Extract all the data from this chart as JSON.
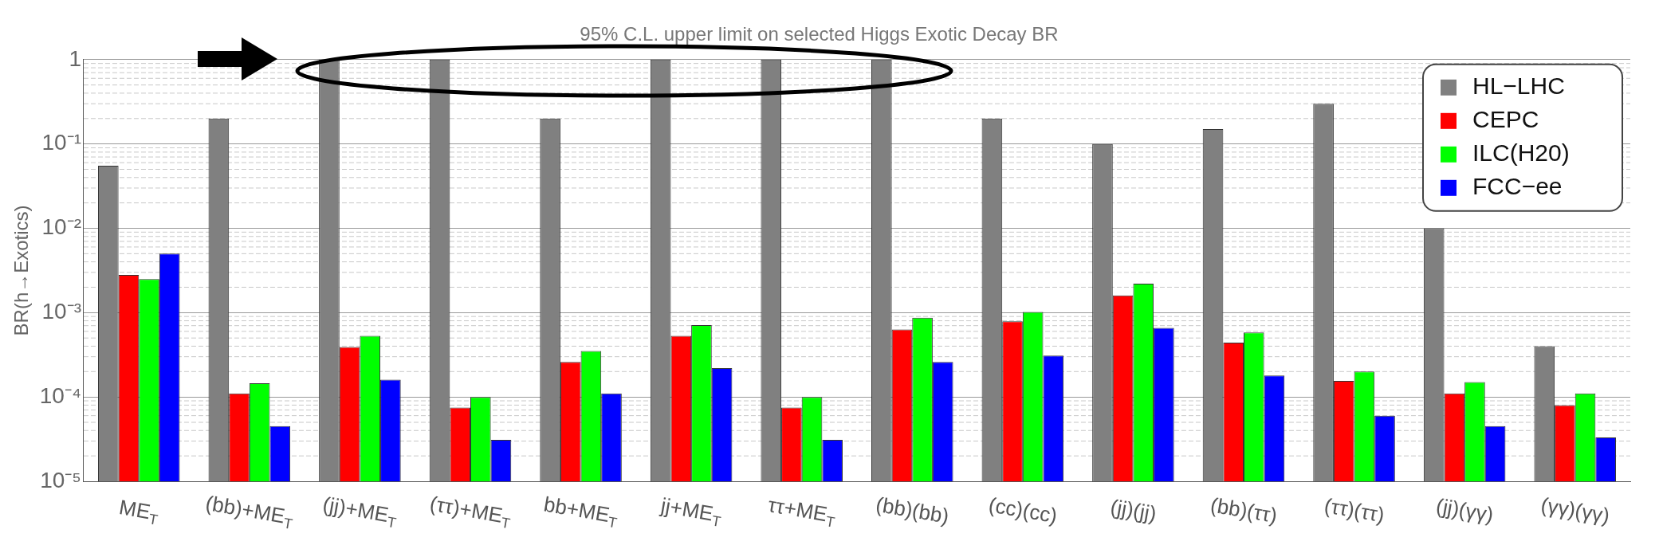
{
  "chart_data": {
    "type": "bar",
    "title": "95% C.L. upper limit on selected Higgs Exotic Decay BR",
    "ylabel": "BR(h→Exotics)",
    "categories": [
      "ME$_{T}$",
      "(bb)+ME$_{T}$",
      "(jj)+ME$_{T}$",
      "(ττ)+ME$_{T}$",
      "bb+ME$_{T}$",
      "jj+ME$_{T}$",
      "ττ+ME$_{T}$",
      "(bb)(bb)",
      "(cc)(cc)",
      "(jj)(jj)",
      "(bb)(ττ)",
      "(ττ)(ττ)",
      "(jj)(γγ)",
      "(γγ)(γγ)"
    ],
    "series": [
      {
        "name": "HL−LHC",
        "color": "#808080",
        "values": [
          0.055,
          0.2,
          1,
          1,
          0.2,
          1,
          1,
          1,
          0.2,
          0.1,
          0.15,
          0.3,
          0.01,
          0.0004
        ]
      },
      {
        "name": "CEPC",
        "color": "#ff0000",
        "values": [
          0.0028,
          0.00011,
          0.00039,
          7.5e-05,
          0.00026,
          0.00053,
          7.5e-05,
          0.00063,
          0.00079,
          0.0016,
          0.00044,
          0.000155,
          0.00011,
          8e-05
        ]
      },
      {
        "name": "ILC(H20)",
        "color": "#00ff00",
        "values": [
          0.0025,
          0.000145,
          0.00053,
          0.0001,
          0.00035,
          0.00071,
          0.0001,
          0.00087,
          0.00102,
          0.0022,
          0.00058,
          0.0002,
          0.00015,
          0.00011
        ]
      },
      {
        "name": "FCC−ee",
        "color": "#0000ff",
        "values": [
          0.005,
          4.5e-05,
          0.00016,
          3.1e-05,
          0.00011,
          0.00022,
          3.1e-05,
          0.00026,
          0.00031,
          0.00066,
          0.00018,
          6e-05,
          4.5e-05,
          3.3e-05
        ]
      }
    ],
    "log": "y",
    "ylim": [
      1e-05,
      1
    ],
    "yticks": [
      {
        "value": 1e-05,
        "label": "10⁻⁵"
      },
      {
        "value": 0.0001,
        "label": "10⁻⁴"
      },
      {
        "value": 0.001,
        "label": "10⁻³"
      },
      {
        "value": 0.01,
        "label": "10⁻²"
      },
      {
        "value": 0.1,
        "label": "10⁻¹"
      },
      1
    ],
    "grid": true,
    "legend": "top right"
  }
}
